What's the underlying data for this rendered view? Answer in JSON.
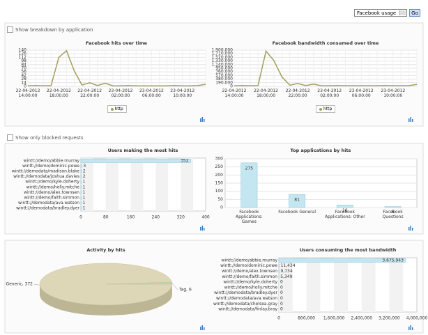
{
  "controls": {
    "select": "Facebook usage",
    "button": "Go",
    "checkbox_breakdown": "Show breakdown by application",
    "checkbox_blocked": "Show only blocked requests"
  },
  "chart_data": [
    {
      "type": "line",
      "title": "Facebook hits over time",
      "categories": [
        "22-04-2012 14:00:00",
        null,
        null,
        null,
        "22-04-2012 18:00:00",
        null,
        null,
        null,
        "22-04-2012 22:00:00",
        null,
        null,
        null,
        "23-04-2012 02:00:00",
        null,
        null,
        null,
        "23-04-2012 06:00:00",
        null,
        null,
        null,
        "23-04-2012 10:00:00",
        null,
        null,
        null
      ],
      "series": [
        {
          "name": "http",
          "color": "#a39d5c",
          "values": [
            2,
            3,
            2,
            3,
            112,
            138,
            60,
            5,
            14,
            3,
            12,
            2,
            2,
            3,
            2,
            2,
            2,
            2,
            2,
            3,
            2,
            2,
            3,
            8
          ]
        }
      ],
      "ylim": [
        0,
        140
      ],
      "yticks": [
        0,
        14,
        28,
        42,
        56,
        70,
        84,
        98,
        112,
        126,
        140
      ],
      "grid": true
    },
    {
      "type": "line",
      "title": "Facebook bandwidth consumed over time",
      "categories": [
        "22-04-2012 14:00:00",
        null,
        null,
        null,
        "22-04-2012 18:00:00",
        null,
        null,
        null,
        "22-04-2012 22:00:00",
        null,
        null,
        null,
        "23-04-2012 02:00:00",
        null,
        null,
        null,
        "23-04-2012 06:00:00",
        null,
        null,
        null,
        "23-04-2012 10:00:00",
        null,
        null,
        null
      ],
      "series": [
        {
          "name": "http",
          "color": "#a39d5c",
          "values": [
            30000,
            40000,
            30000,
            40000,
            1850000,
            1350000,
            500000,
            60000,
            150000,
            40000,
            120000,
            30000,
            30000,
            40000,
            30000,
            30000,
            30000,
            30000,
            30000,
            40000,
            30000,
            30000,
            40000,
            100000
          ]
        }
      ],
      "ylim": [
        0,
        1900000
      ],
      "yticks": [
        0,
        {
          "value": 190000,
          "label": "190,000"
        },
        {
          "value": 380000,
          "label": "380,000"
        },
        {
          "value": 570000,
          "label": "570,000"
        },
        {
          "value": 760000,
          "label": "760,000"
        },
        {
          "value": 950000,
          "label": "950,000"
        },
        {
          "value": 1140000,
          "label": "1,140,000"
        },
        {
          "value": 1330000,
          "label": "1,330,000"
        },
        {
          "value": 1520000,
          "label": "1,520,000"
        },
        {
          "value": 1710000,
          "label": "1,710,000"
        },
        {
          "value": 1900000,
          "label": "1,900,000"
        }
      ],
      "grid": true
    },
    {
      "type": "hbar",
      "title": "Users making the most hits",
      "color": "#c4e6f0",
      "categories": [
        "wintt://demo/abbie.murray",
        "wintt://demo/dominic.powe",
        "wintt://demodata/madison.blake",
        "wintt://demodata/joshua.davies",
        "wintt://demo/kyle.doherty",
        "wintt://demo/holly.mitche",
        "wintt://demo/alex.townsen",
        "wintt://demo/faith.simmon",
        "wintt://demodata/ava.watson",
        "wintt://demodata/bradley.dyer"
      ],
      "values": [
        352,
        3,
        2,
        2,
        1,
        1,
        1,
        1,
        1,
        1
      ],
      "xlim": [
        0,
        400
      ],
      "xticks": [
        0,
        80,
        160,
        240,
        320,
        400
      ],
      "grid": true
    },
    {
      "type": "bar",
      "title": "Top applications by hits",
      "color": "#c4e6f0",
      "categories": [
        "Facebook Applications: Games",
        "Facebook General",
        "Facebook Applications: Other",
        "Facebook Questions"
      ],
      "values": [
        275,
        81,
        16,
        6
      ],
      "ylim": [
        0,
        300
      ],
      "yticks": [
        0,
        50,
        100,
        150,
        200,
        250,
        300
      ],
      "grid": true
    },
    {
      "type": "pie",
      "title": "Activity by hits",
      "categories": [
        "Generic",
        "Tag"
      ],
      "values": [
        372,
        6
      ],
      "value_labels": [
        "Generic, 372",
        "Tag, 6"
      ],
      "colors": [
        "#ddd7b8",
        "#b7d9a8"
      ]
    },
    {
      "type": "hbar",
      "title": "Users consuming the most bandwidth",
      "color": "#c4e6f0",
      "categories": [
        "wintt://demo/abbie.murray",
        "wintt://demo/dominic.powe",
        "wintt://demo/alex.townsen",
        "wintt://demo/faith.simmon",
        "wintt://demo/kyle.doherty",
        "wintt://demo/holly.mitche",
        "wintt://demodata/bradley.dyer",
        "wintt://demodata/ava.watson",
        "wintt://demodata/chelsea.gray",
        "wintt://demodata/finlay.bray"
      ],
      "values": [
        3675943,
        11434,
        9734,
        5349,
        0,
        0,
        0,
        0,
        0,
        0
      ],
      "value_labels": [
        "3,675,943",
        "11,434",
        "9,734",
        "5,349",
        "0",
        "0",
        "0",
        "0",
        "0",
        "0"
      ],
      "xlim": [
        0,
        4000000
      ],
      "xticks": [
        0,
        {
          "value": 800000,
          "label": "800,000"
        },
        {
          "value": 1600000,
          "label": "1,600,000"
        },
        {
          "value": 2400000,
          "label": "2,400,000"
        },
        {
          "value": 3200000,
          "label": "3,200,000"
        },
        {
          "value": 4000000,
          "label": "4,000,000"
        }
      ],
      "grid": true
    }
  ]
}
